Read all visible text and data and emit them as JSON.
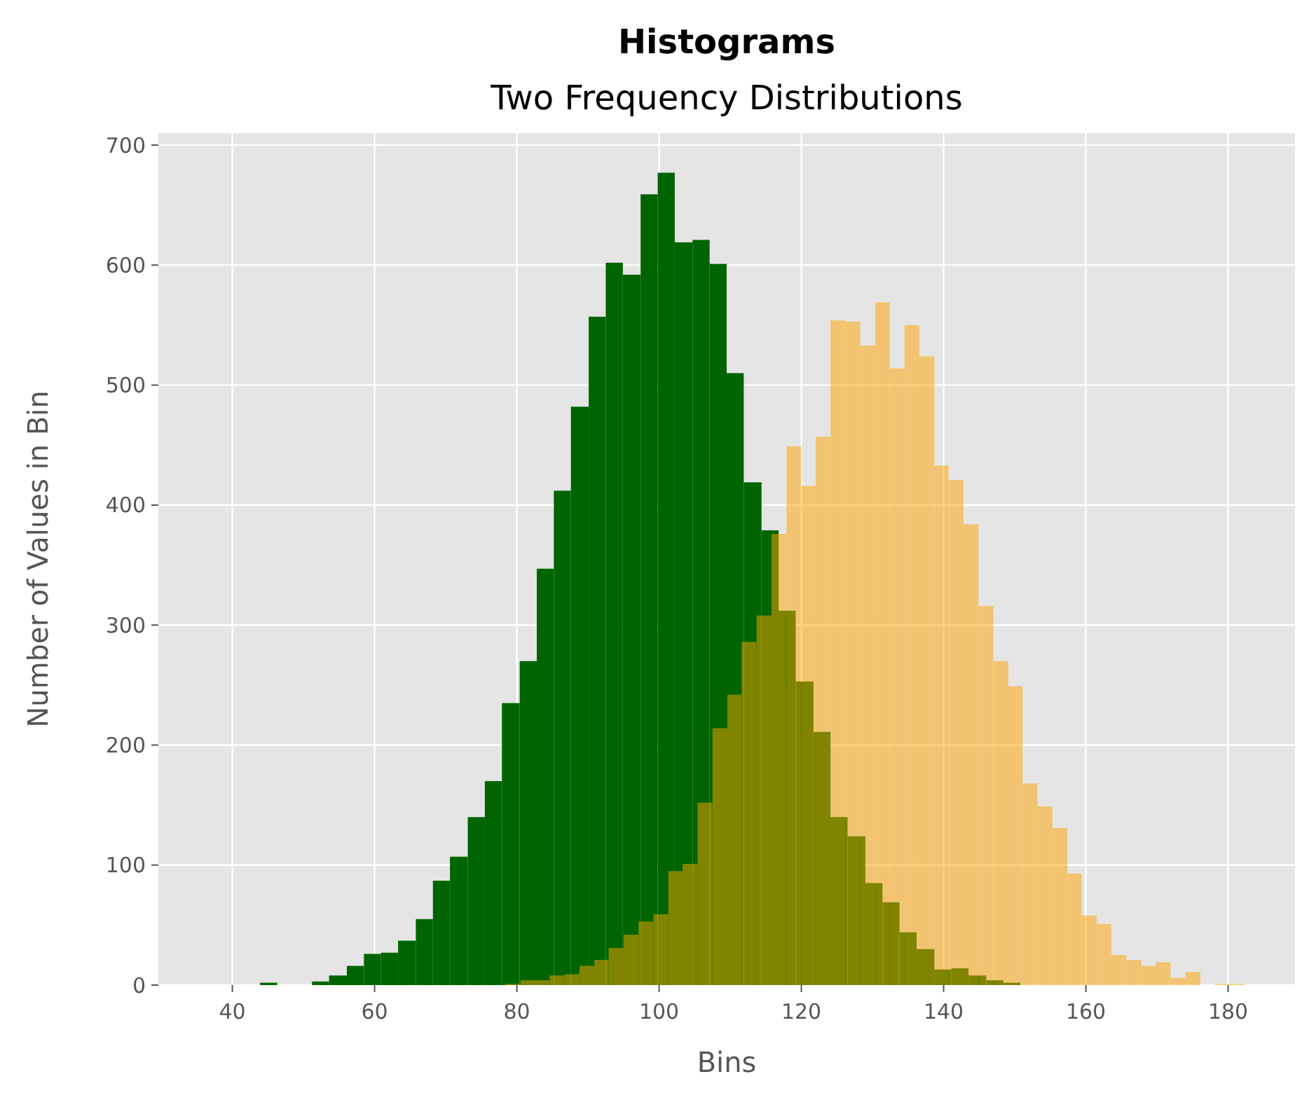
{
  "chart_data": {
    "type": "histogram",
    "title": "Histograms",
    "subtitle": "Two Frequency Distributions",
    "xlabel": "Bins",
    "ylabel": "Number of Values in Bin",
    "xlim": [
      29.6,
      189.4
    ],
    "xticks": [
      40,
      60,
      80,
      100,
      120,
      140,
      160,
      180
    ],
    "ylim": [
      0,
      710
    ],
    "yticks": [
      0,
      100,
      200,
      300,
      400,
      500,
      600,
      700
    ],
    "grid": true,
    "bins": [
      43.9,
      46.3,
      51.2,
      53.6,
      56.1,
      58.5,
      60.9,
      63.3,
      65.8,
      68.2,
      70.6,
      73.1,
      75.5,
      77.9,
      80.4,
      82.8,
      85.2,
      87.6,
      90.1,
      92.5,
      94.9,
      97.4,
      99.8,
      102.2,
      104.7,
      107.1,
      109.5,
      111.9,
      114.4,
      116.8,
      119.2,
      121.7,
      124.1,
      126.5,
      129,
      131.4,
      133.8,
      136.2,
      138.7,
      141.1,
      143.5,
      146,
      148.4,
      150.8
    ],
    "series": [
      {
        "color": "#006400",
        "values": [
          2,
          0,
          3,
          8,
          16,
          26,
          27,
          37,
          55,
          87,
          107,
          140,
          170,
          235,
          270,
          347,
          412,
          482,
          557,
          602,
          592,
          659,
          677,
          619,
          621,
          601,
          510,
          419,
          379,
          312,
          253,
          211,
          140,
          124,
          85,
          69,
          44,
          30,
          13,
          14,
          8,
          4,
          2
        ]
      },
      {
        "color": "#ffa500",
        "bins": [
          78.4,
          80.5,
          82.6,
          84.6,
          86.7,
          88.8,
          90.9,
          92.9,
          95,
          97.1,
          99.2,
          101.3,
          103.3,
          105.4,
          107.5,
          109.6,
          111.6,
          113.7,
          115.8,
          117.9,
          120,
          122,
          124.1,
          126.2,
          128.3,
          130.4,
          132.4,
          134.5,
          136.6,
          138.7,
          140.7,
          142.8,
          144.9,
          147,
          149.1,
          151.1,
          153.2,
          155.3,
          157.4,
          159.4,
          161.5,
          163.6,
          165.7,
          167.8,
          169.8,
          171.9,
          174,
          176.1,
          178.1,
          180.2,
          182.3
        ],
        "values": [
          1,
          4,
          4,
          8,
          9,
          16,
          21,
          31,
          42,
          53,
          59,
          95,
          101,
          152,
          214,
          242,
          286,
          308,
          376,
          449,
          416,
          457,
          554,
          553,
          533,
          569,
          514,
          550,
          524,
          433,
          421,
          384,
          316,
          270,
          249,
          168,
          149,
          131,
          93,
          58,
          51,
          25,
          21,
          16,
          19,
          6,
          11,
          0,
          1,
          1
        ]
      }
    ]
  }
}
